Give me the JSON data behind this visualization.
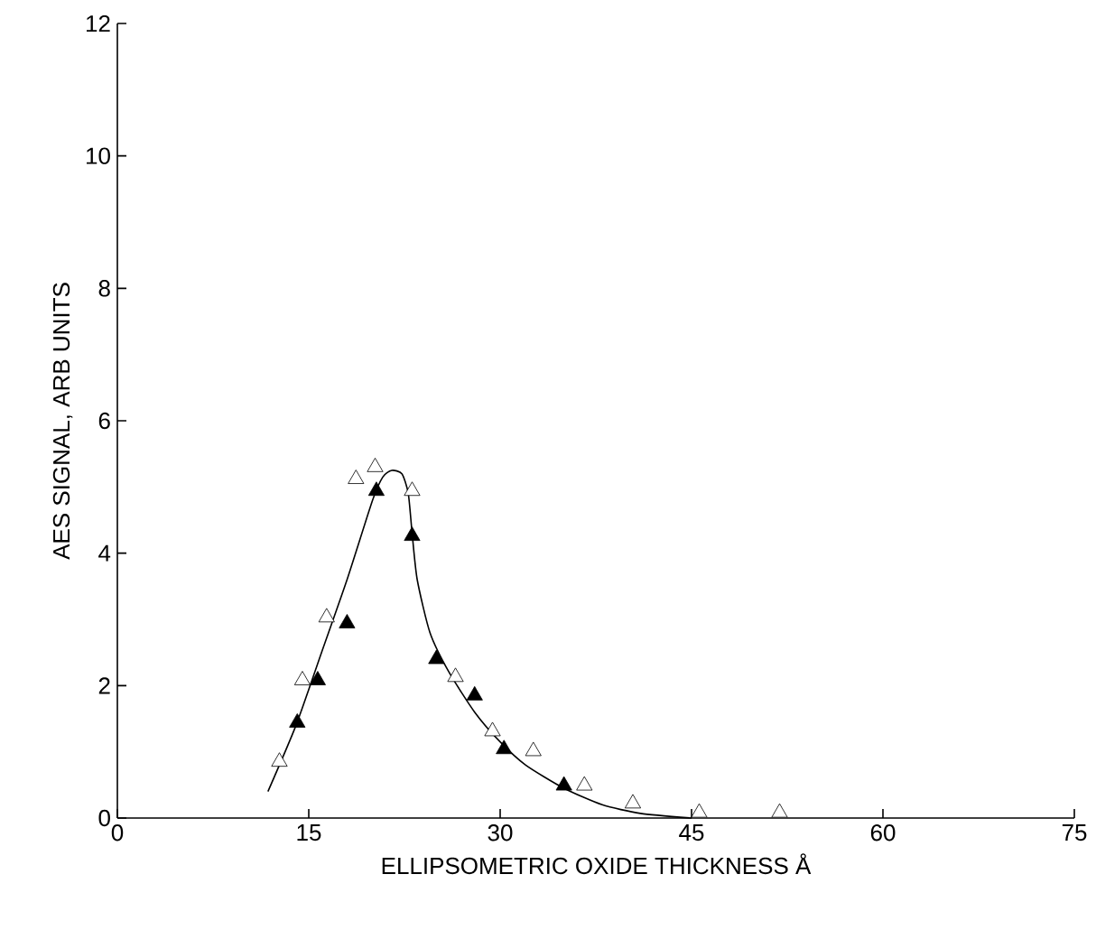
{
  "chart_data": {
    "type": "scatter",
    "xlabel": "ELLIPSOMETRIC OXIDE THICKNESS Å",
    "ylabel": "AES SIGNAL, ARB UNITS",
    "xlim": [
      0,
      75
    ],
    "xticks": [
      0,
      15,
      30,
      45,
      60,
      75
    ],
    "ylim": [
      0,
      12
    ],
    "yticks": [
      0,
      2,
      4,
      6,
      8,
      10,
      12
    ],
    "grid": false,
    "marker": "triangle",
    "series": [
      {
        "color": "#ffffff",
        "x": [
          12.7,
          14.5,
          16.4,
          18.7,
          20.2,
          23.1,
          26.5,
          29.4,
          32.6,
          36.6,
          40.4,
          45.6,
          51.9
        ],
        "values": [
          0.85,
          2.08,
          3.03,
          5.12,
          5.3,
          4.94,
          2.13,
          1.31,
          1.01,
          0.49,
          0.22,
          0.08,
          0.08
        ]
      },
      {
        "color": "#000000",
        "x": [
          14.1,
          15.7,
          18.0,
          20.3,
          23.1,
          25.0,
          28.0,
          30.3,
          35.0
        ],
        "values": [
          1.44,
          2.08,
          2.94,
          4.94,
          4.26,
          2.4,
          1.85,
          1.04,
          0.49
        ]
      },
      {
        "type": "line",
        "color": "#000000",
        "marker": "none",
        "x": [
          11.8,
          14,
          16,
          18,
          20,
          20.8,
          21.5,
          22.3,
          22.8,
          23.1,
          23.5,
          24.5,
          26,
          28,
          30,
          32,
          35,
          38,
          41,
          45
        ],
        "values": [
          0.4,
          1.4,
          2.5,
          3.6,
          4.8,
          5.15,
          5.25,
          5.2,
          4.9,
          4.3,
          3.6,
          2.8,
          2.2,
          1.6,
          1.15,
          0.8,
          0.45,
          0.2,
          0.07,
          0.0
        ]
      }
    ]
  }
}
